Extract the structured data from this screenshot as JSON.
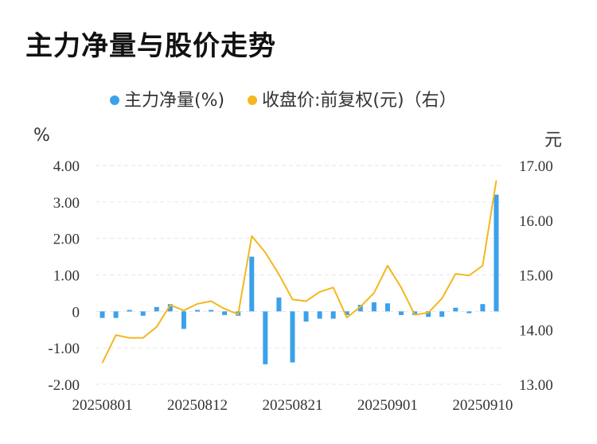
{
  "title": "主力净量与股价走势",
  "legend": {
    "net": "主力净量(%)",
    "price": "收盘价:前复权(元)（右）"
  },
  "units": {
    "left": "%",
    "right": "元"
  },
  "colors": {
    "bar": "#3ba1eb",
    "line": "#f4b71f",
    "grid": "#e6e6e6"
  },
  "chart_data": {
    "type": "bar+line",
    "x_tick_labels": [
      "20250801",
      "20250812",
      "20250821",
      "20250901",
      "20250910"
    ],
    "x_tick_index": [
      0,
      7,
      14,
      21,
      28
    ],
    "left_axis": {
      "ylim": [
        -2,
        4
      ],
      "ticks": [
        "4.00",
        "3.00",
        "2.00",
        "1.00",
        "0",
        "-1.00",
        "-2.00"
      ],
      "tick_values": [
        4,
        3,
        2,
        1,
        0,
        -1,
        -2
      ]
    },
    "right_axis": {
      "ylim": [
        13,
        17
      ],
      "ticks": [
        "17.00",
        "16.00",
        "15.00",
        "14.00",
        "13.00"
      ],
      "tick_values": [
        17,
        16,
        15,
        14,
        13
      ]
    },
    "series": [
      {
        "name": "主力净量(%)",
        "type": "bar",
        "axis": "left",
        "values": [
          -0.18,
          -0.18,
          0.04,
          -0.12,
          0.12,
          0.2,
          -0.48,
          0.04,
          0.04,
          -0.1,
          -0.12,
          1.5,
          -1.45,
          0.38,
          -1.4,
          -0.28,
          -0.2,
          -0.2,
          -0.1,
          0.18,
          0.25,
          0.22,
          -0.1,
          -0.1,
          -0.15,
          -0.15,
          0.1,
          -0.05,
          0.2,
          3.2
        ]
      },
      {
        "name": "收盘价:前复权(元)（右）",
        "type": "line",
        "axis": "right",
        "values": [
          13.39,
          13.9,
          13.85,
          13.85,
          14.05,
          14.45,
          14.35,
          14.47,
          14.52,
          14.38,
          14.28,
          15.71,
          15.41,
          15.01,
          14.55,
          14.52,
          14.69,
          14.77,
          14.22,
          14.42,
          14.67,
          15.17,
          14.77,
          14.27,
          14.31,
          14.57,
          15.02,
          14.99,
          15.17,
          16.73
        ]
      }
    ]
  }
}
